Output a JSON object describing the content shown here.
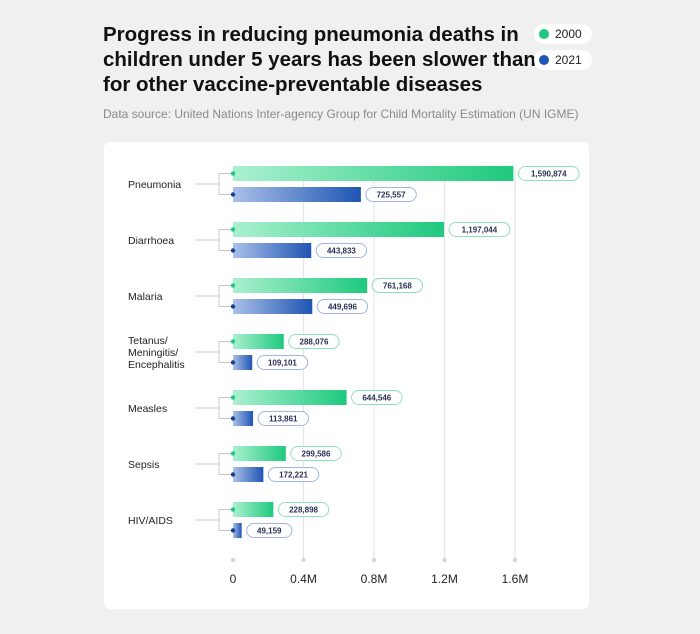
{
  "title": "Progress in reducing pneumonia deaths in children under 5 years has been slower than for other vaccine-preventable diseases",
  "subtitle": "Data source: United Nations Inter-agency Group for Child Mortality Estimation (UN IGME)",
  "legend": [
    {
      "label": "2000",
      "color": "#1ec97e"
    },
    {
      "label": "2021",
      "color": "#1f55b3"
    }
  ],
  "chart_data": {
    "type": "bar",
    "orientation": "horizontal",
    "categories": [
      [
        "Pneumonia"
      ],
      [
        "Diarrhoea"
      ],
      [
        "Malaria"
      ],
      [
        "Tetanus/",
        "Meningitis/",
        "Encephalitis"
      ],
      [
        "Measles"
      ],
      [
        "Sepsis"
      ],
      [
        "HIV/AIDS"
      ]
    ],
    "series": [
      {
        "name": "2000",
        "color": "#1ec97e",
        "values": [
          1590874,
          1197044,
          761168,
          288076,
          644546,
          299586,
          228898
        ],
        "labels": [
          "1,590,874",
          "1,197,044",
          "761,168",
          "288,076",
          "644,546",
          "299,586",
          "228,898"
        ]
      },
      {
        "name": "2021",
        "color": "#1f55b3",
        "values": [
          725557,
          443833,
          449696,
          109101,
          113861,
          172221,
          49159
        ],
        "labels": [
          "725,557",
          "443,833",
          "449,696",
          "109,101",
          "113,861",
          "172,221",
          "49,159"
        ]
      }
    ],
    "xlim": [
      0,
      1600000
    ],
    "xticks": [
      0,
      400000,
      800000,
      1200000,
      1600000
    ],
    "xtick_labels": [
      "0",
      "0.4M",
      "0.8M",
      "1.2M",
      "1.6M"
    ],
    "grid": true,
    "legend_position": "top-right"
  }
}
